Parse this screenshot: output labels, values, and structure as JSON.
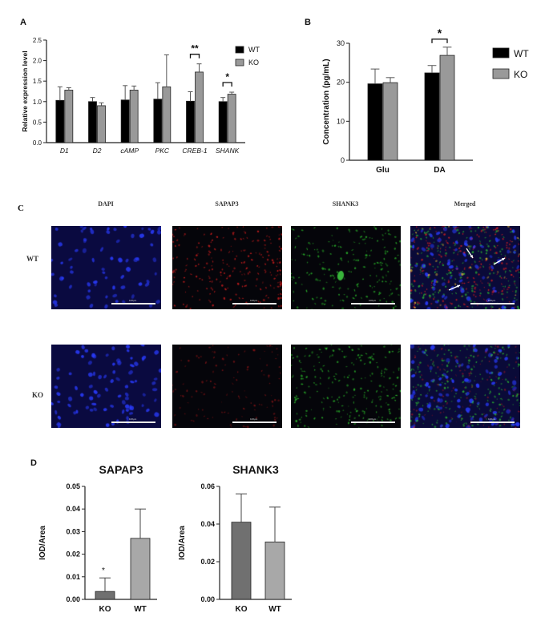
{
  "panels": {
    "A": "A",
    "B": "B",
    "C": "C",
    "D": "D"
  },
  "chart_data": [
    {
      "id": "A",
      "type": "bar",
      "title": "",
      "ylabel": "Relative expression level",
      "xlabel": "",
      "categories": [
        "D1",
        "D2",
        "cAMP",
        "PKC",
        "CREB-1",
        "SHANK"
      ],
      "ylim": [
        0,
        2.5
      ],
      "yticks": [
        "0.0",
        "0.5",
        "1.0",
        "1.5",
        "2.0",
        "2.5"
      ],
      "legend": [
        "WT",
        "KO"
      ],
      "legend_position": "top-right",
      "series": [
        {
          "name": "WT",
          "color": "#000000",
          "values": [
            1.03,
            1.0,
            1.04,
            1.06,
            1.01,
            1.0
          ],
          "errors": [
            0.33,
            0.1,
            0.35,
            0.4,
            0.23,
            0.1
          ]
        },
        {
          "name": "KO",
          "color": "#999999",
          "values": [
            1.28,
            0.9,
            1.28,
            1.36,
            1.72,
            1.18
          ],
          "errors": [
            0.06,
            0.07,
            0.1,
            0.78,
            0.2,
            0.05
          ]
        }
      ],
      "significance": [
        {
          "category": "CREB-1",
          "label": "**"
        },
        {
          "category": "SHANK",
          "label": "*"
        }
      ]
    },
    {
      "id": "B",
      "type": "bar",
      "title": "",
      "ylabel": "Concentration (pg/mL)",
      "xlabel": "",
      "categories": [
        "Glu",
        "DA"
      ],
      "ylim": [
        0,
        30
      ],
      "yticks": [
        "0",
        "10",
        "20",
        "30"
      ],
      "legend": [
        "WT",
        "KO"
      ],
      "legend_position": "top-right",
      "series": [
        {
          "name": "WT",
          "color": "#000000",
          "values": [
            19.6,
            22.4
          ],
          "errors": [
            3.8,
            1.9
          ]
        },
        {
          "name": "KO",
          "color": "#999999",
          "values": [
            19.9,
            26.9
          ],
          "errors": [
            1.3,
            2.1
          ]
        }
      ],
      "significance": [
        {
          "category": "DA",
          "label": "*"
        }
      ]
    },
    {
      "id": "D1",
      "type": "bar",
      "title": "SAPAP3",
      "ylabel": "IOD/Area",
      "xlabel": "",
      "categories": [
        "KO",
        "WT"
      ],
      "ylim": [
        0,
        0.05
      ],
      "yticks": [
        "0.00",
        "0.01",
        "0.02",
        "0.03",
        "0.04",
        "0.05"
      ],
      "values": [
        0.0035,
        0.027
      ],
      "errors": [
        0.006,
        0.013
      ],
      "colors": [
        "#707070",
        "#a8a8a8"
      ],
      "significance": [
        {
          "category": "KO",
          "label": "*"
        }
      ]
    },
    {
      "id": "D2",
      "type": "bar",
      "title": "SHANK3",
      "ylabel": "IOD/Area",
      "xlabel": "",
      "categories": [
        "KO",
        "WT"
      ],
      "ylim": [
        0,
        0.06
      ],
      "yticks": [
        "0.00",
        "0.02",
        "0.04",
        "0.06"
      ],
      "values": [
        0.041,
        0.0305
      ],
      "errors": [
        0.015,
        0.0185
      ],
      "colors": [
        "#707070",
        "#a8a8a8"
      ],
      "significance": []
    }
  ],
  "microscopy": {
    "columns": [
      "DAPI",
      "SAPAP3",
      "SHANK3",
      "Merged"
    ],
    "rows": [
      "WT",
      "KO"
    ],
    "channel_colors": {
      "DAPI": "#2a3cff",
      "SAPAP3": "#e02020",
      "SHANK3": "#30d030"
    },
    "scale_bar_text": "100μm"
  }
}
